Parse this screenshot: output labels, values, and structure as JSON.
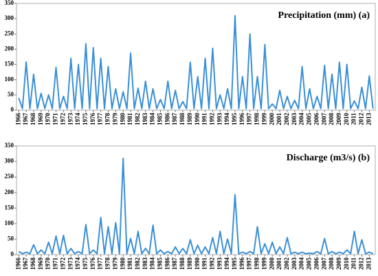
{
  "chart_data": [
    {
      "type": "line",
      "title": "Precipitation  (mm) (a)",
      "x": [
        1966,
        1966.5,
        1967,
        1967.5,
        1968,
        1968.5,
        1969,
        1969.5,
        1970,
        1970.5,
        1971,
        1971.5,
        1972,
        1972.5,
        1973,
        1973.5,
        1974,
        1974.5,
        1975,
        1975.5,
        1976,
        1976.5,
        1977,
        1977.5,
        1978,
        1978.5,
        1979,
        1979.5,
        1980,
        1980.5,
        1981,
        1981.5,
        1982,
        1982.5,
        1983,
        1983.5,
        1984,
        1984.5,
        1985,
        1985.5,
        1986,
        1986.5,
        1987,
        1987.5,
        1988,
        1988.5,
        1989,
        1989.5,
        1990,
        1990.5,
        1991,
        1991.5,
        1992,
        1992.5,
        1993,
        1993.5,
        1994,
        1994.5,
        1995,
        1995.5,
        1996,
        1996.5,
        1997,
        1997.5,
        1998,
        1998.5,
        1999,
        1999.5,
        2000,
        2000.5,
        2001,
        2001.5,
        2002,
        2002.5,
        2003,
        2003.5,
        2004,
        2004.5,
        2005,
        2005.5,
        2006,
        2006.5,
        2007,
        2007.5,
        2008,
        2008.5,
        2009,
        2009.5,
        2010,
        2010.5,
        2011,
        2011.5,
        2012,
        2012.5,
        2013,
        2013.5
      ],
      "series": [
        {
          "color": "#3a8fd6",
          "values": [
            40,
            5,
            158,
            5,
            118,
            5,
            55,
            5,
            50,
            5,
            140,
            5,
            45,
            5,
            170,
            5,
            150,
            5,
            218,
            5,
            205,
            5,
            170,
            5,
            143,
            5,
            70,
            5,
            60,
            5,
            187,
            5,
            72,
            5,
            95,
            5,
            70,
            5,
            35,
            5,
            95,
            5,
            65,
            5,
            28,
            5,
            157,
            5,
            110,
            5,
            170,
            5,
            203,
            5,
            50,
            5,
            70,
            5,
            310,
            5,
            110,
            5,
            250,
            5,
            110,
            5,
            215,
            5,
            20,
            5,
            65,
            5,
            45,
            5,
            32,
            5,
            143,
            5,
            70,
            5,
            45,
            5,
            147,
            5,
            118,
            5,
            157,
            5,
            150,
            5,
            30,
            5,
            75,
            5,
            112,
            5
          ]
        }
      ],
      "xlim": [
        1965.7,
        2013.8
      ],
      "xticks": [
        1966,
        1967,
        1968,
        1969,
        1970,
        1971,
        1972,
        1973,
        1974,
        1975,
        1976,
        1977,
        1978,
        1979,
        1980,
        1981,
        1982,
        1983,
        1984,
        1985,
        1986,
        1987,
        1988,
        1989,
        1990,
        1991,
        1992,
        1993,
        1994,
        1995,
        1996,
        1997,
        1998,
        1999,
        2000,
        2001,
        2002,
        2003,
        2004,
        2005,
        2006,
        2007,
        2008,
        2009,
        2010,
        2011,
        2012,
        2013
      ],
      "ylim": [
        0,
        350
      ],
      "yticks": [
        0,
        50,
        100,
        150,
        200,
        250,
        300,
        350
      ]
    },
    {
      "type": "line",
      "title": "Discharge (m3/s) (b)",
      "x": [
        1966,
        1966.5,
        1967,
        1967.5,
        1968,
        1968.5,
        1969,
        1969.5,
        1970,
        1970.5,
        1971,
        1971.5,
        1972,
        1972.5,
        1973,
        1973.5,
        1974,
        1974.5,
        1975,
        1975.5,
        1976,
        1976.5,
        1977,
        1977.5,
        1978,
        1978.5,
        1979,
        1979.5,
        1980,
        1980.5,
        1981,
        1981.5,
        1982,
        1982.5,
        1983,
        1983.5,
        1984,
        1984.5,
        1985,
        1985.5,
        1986,
        1986.5,
        1987,
        1987.5,
        1988,
        1988.5,
        1989,
        1989.5,
        1990,
        1990.5,
        1991,
        1991.5,
        1992,
        1992.5,
        1993,
        1993.5,
        1994,
        1994.5,
        1995,
        1995.5,
        1996,
        1996.5,
        1997,
        1997.5,
        1998,
        1998.5,
        1999,
        1999.5,
        2000,
        2000.5,
        2001,
        2001.5,
        2002,
        2002.5,
        2003,
        2003.5,
        2004,
        2004.5,
        2005,
        2005.5,
        2006,
        2006.5,
        2007,
        2007.5,
        2008,
        2008.5,
        2009,
        2009.5,
        2010,
        2010.5,
        2011,
        2011.5,
        2012,
        2012.5,
        2013,
        2013.5
      ],
      "series": [
        {
          "color": "#3a8fd6",
          "values": [
            10,
            3,
            8,
            3,
            32,
            3,
            15,
            3,
            40,
            3,
            60,
            3,
            62,
            3,
            20,
            3,
            10,
            3,
            97,
            3,
            15,
            3,
            120,
            3,
            90,
            3,
            103,
            3,
            310,
            3,
            52,
            3,
            75,
            3,
            20,
            3,
            95,
            3,
            15,
            3,
            10,
            3,
            25,
            3,
            20,
            3,
            48,
            3,
            30,
            3,
            25,
            3,
            55,
            3,
            75,
            3,
            50,
            3,
            193,
            3,
            8,
            3,
            10,
            3,
            90,
            3,
            35,
            3,
            40,
            3,
            25,
            3,
            55,
            3,
            8,
            3,
            8,
            3,
            5,
            3,
            10,
            3,
            52,
            3,
            10,
            3,
            8,
            3,
            15,
            3,
            75,
            3,
            48,
            3,
            8,
            3
          ]
        }
      ],
      "xlim": [
        1965.7,
        2013.8
      ],
      "xticks": [
        1966,
        1967,
        1968,
        1969,
        1970,
        1971,
        1972,
        1973,
        1974,
        1975,
        1976,
        1977,
        1978,
        1979,
        1980,
        1981,
        1982,
        1983,
        1984,
        1985,
        1986,
        1987,
        1988,
        1989,
        1990,
        1991,
        1992,
        1993,
        1994,
        1995,
        1996,
        1997,
        1998,
        1999,
        2000,
        2001,
        2002,
        2003,
        2004,
        2005,
        2006,
        2007,
        2008,
        2009,
        2010,
        2011,
        2012,
        2013
      ],
      "ylim": [
        0,
        350
      ],
      "yticks": [
        0,
        50,
        100,
        150,
        200,
        250,
        300,
        350
      ]
    }
  ]
}
